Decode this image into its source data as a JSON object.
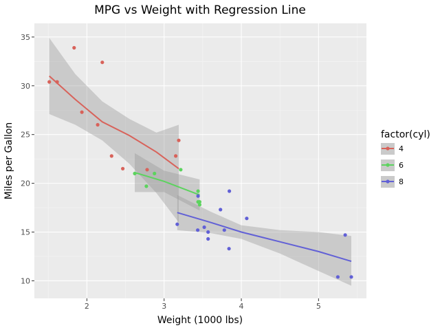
{
  "chart_data": {
    "type": "scatter",
    "title": "MPG vs Weight with Regression Line",
    "xlabel": "Weight (1000 lbs)",
    "ylabel": "Miles per Gallon",
    "xlim": [
      1.32,
      5.62
    ],
    "ylim": [
      8.2,
      36.4
    ],
    "xticks": [
      2,
      3,
      4,
      5
    ],
    "yticks": [
      10,
      15,
      20,
      25,
      30,
      35
    ],
    "grid": true,
    "legend_title": "factor(cyl)",
    "legend_position": "right",
    "series": [
      {
        "name": "4",
        "color": "#d8625a",
        "points": [
          [
            1.513,
            30.4
          ],
          [
            1.615,
            30.4
          ],
          [
            1.835,
            33.9
          ],
          [
            1.935,
            27.3
          ],
          [
            2.14,
            26.0
          ],
          [
            2.2,
            32.4
          ],
          [
            2.32,
            22.8
          ],
          [
            2.465,
            21.5
          ],
          [
            2.78,
            21.4
          ],
          [
            3.15,
            22.8
          ],
          [
            3.19,
            24.4
          ]
        ],
        "fit": {
          "x": [
            1.513,
            1.85,
            2.2,
            2.55,
            2.9,
            3.19
          ],
          "y": [
            31.0,
            28.6,
            26.3,
            24.9,
            23.2,
            21.5
          ],
          "lower": [
            27.1,
            26.0,
            24.4,
            22.0,
            19.0,
            16.0
          ],
          "upper": [
            34.9,
            31.2,
            28.4,
            26.6,
            25.2,
            26.0
          ]
        }
      },
      {
        "name": "6",
        "color": "#5cd35e",
        "points": [
          [
            2.62,
            21.0
          ],
          [
            2.77,
            19.7
          ],
          [
            2.875,
            21.0
          ],
          [
            3.215,
            21.4
          ],
          [
            3.44,
            18.1
          ],
          [
            3.44,
            19.2
          ],
          [
            3.46,
            17.8
          ],
          [
            3.46,
            18.1
          ]
        ],
        "fit": {
          "x": [
            2.62,
            3.0,
            3.46
          ],
          "y": [
            21.1,
            20.2,
            18.8
          ],
          "lower": [
            19.1,
            19.1,
            17.2
          ],
          "upper": [
            23.1,
            21.3,
            20.4
          ]
        }
      },
      {
        "name": "8",
        "color": "#6160d6",
        "points": [
          [
            3.17,
            15.8
          ],
          [
            3.435,
            15.2
          ],
          [
            3.44,
            18.7
          ],
          [
            3.52,
            15.5
          ],
          [
            3.57,
            14.3
          ],
          [
            3.57,
            15.0
          ],
          [
            3.73,
            17.3
          ],
          [
            3.78,
            15.2
          ],
          [
            3.84,
            13.3
          ],
          [
            3.845,
            19.2
          ],
          [
            4.07,
            16.4
          ],
          [
            5.25,
            10.4
          ],
          [
            5.345,
            14.7
          ],
          [
            5.424,
            10.4
          ]
        ],
        "fit": {
          "x": [
            3.17,
            3.6,
            4.0,
            4.5,
            5.0,
            5.424
          ],
          "y": [
            17.0,
            16.0,
            15.0,
            14.0,
            13.0,
            12.0
          ],
          "lower": [
            15.2,
            14.9,
            14.3,
            12.8,
            11.0,
            9.5
          ],
          "upper": [
            18.8,
            17.1,
            15.7,
            15.2,
            15.0,
            14.6
          ]
        }
      }
    ]
  }
}
